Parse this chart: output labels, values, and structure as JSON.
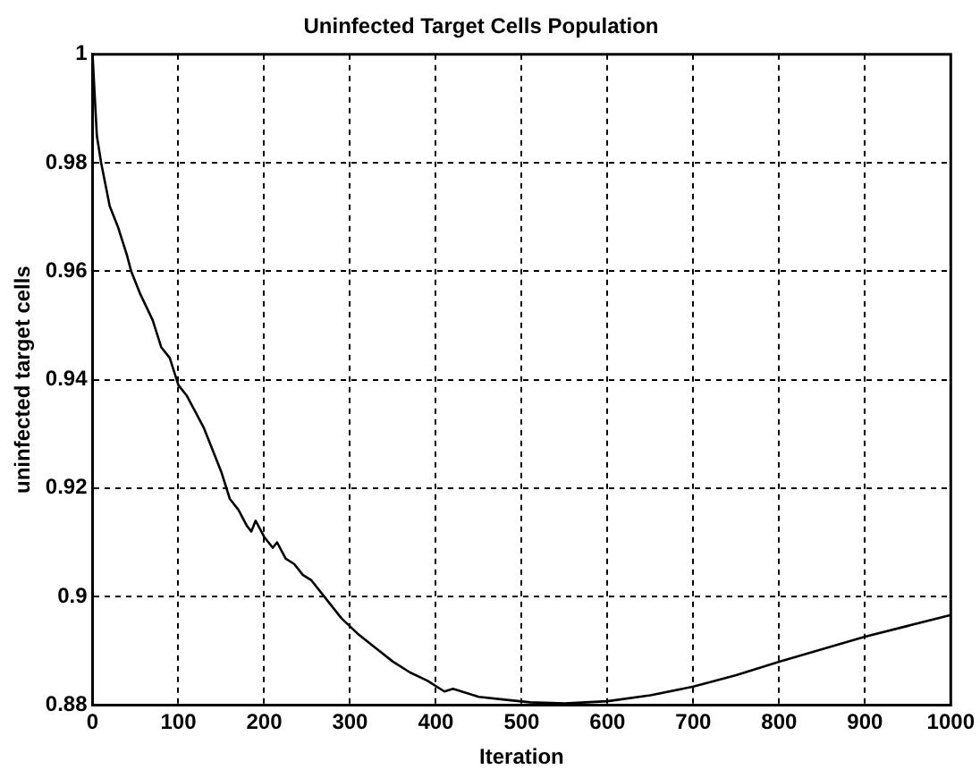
{
  "chart_data": {
    "type": "line",
    "title": "Uninfected Target Cells Population",
    "xlabel": "Iteration",
    "ylabel": "uninfected target cells",
    "x": [
      0,
      5,
      10,
      20,
      30,
      40,
      45,
      55,
      70,
      80,
      90,
      100,
      110,
      120,
      130,
      140,
      150,
      160,
      170,
      180,
      185,
      190,
      200,
      210,
      215,
      225,
      235,
      245,
      255,
      270,
      290,
      310,
      330,
      350,
      370,
      390,
      410,
      420,
      430,
      450,
      480,
      510,
      550,
      600,
      650,
      700,
      750,
      800,
      850,
      900,
      950,
      1000
    ],
    "series": [
      {
        "color": "#000000",
        "values": [
          1.0,
          0.985,
          0.98,
          0.972,
          0.968,
          0.963,
          0.96,
          0.956,
          0.951,
          0.946,
          0.944,
          0.939,
          0.937,
          0.934,
          0.931,
          0.927,
          0.923,
          0.918,
          0.916,
          0.913,
          0.912,
          0.914,
          0.911,
          0.909,
          0.91,
          0.907,
          0.906,
          0.904,
          0.903,
          0.9,
          0.896,
          0.893,
          0.8905,
          0.888,
          0.886,
          0.8845,
          0.8825,
          0.883,
          0.8825,
          0.8815,
          0.881,
          0.8805,
          0.8803,
          0.8807,
          0.8818,
          0.8834,
          0.8855,
          0.888,
          0.8903,
          0.8926,
          0.8946,
          0.8966
        ]
      }
    ],
    "xlim": [
      0,
      1000
    ],
    "xticks": [
      0,
      100,
      200,
      300,
      400,
      500,
      600,
      700,
      800,
      900,
      1000
    ],
    "ylim": [
      0.88,
      1
    ],
    "yticks": [
      0.88,
      0.9,
      0.92,
      0.94,
      0.96,
      0.98,
      1
    ],
    "grid": true,
    "legend": false,
    "marker": "none",
    "line_style": "solid"
  }
}
